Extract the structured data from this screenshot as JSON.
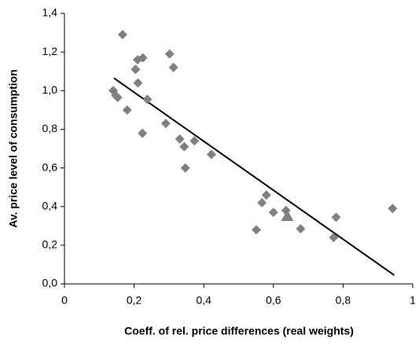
{
  "chart_data": {
    "type": "scatter",
    "x_label": "Coeff. of rel. price differences (real weights)",
    "y_label": "Av. price level of consumption",
    "xlim": [
      0,
      1
    ],
    "ylim": [
      0,
      1.4
    ],
    "xticks": [
      0,
      {
        "value": 0.2,
        "label": "0,2"
      },
      {
        "value": 0.4,
        "label": "0,4"
      },
      {
        "value": 0.6,
        "label": "0,6"
      },
      {
        "value": 0.8,
        "label": "0,8"
      },
      1
    ],
    "yticks": [
      {
        "value": 0,
        "label": "0,0"
      },
      {
        "value": 0.2,
        "label": "0,2"
      },
      {
        "value": 0.4,
        "label": "0,4"
      },
      {
        "value": 0.6,
        "label": "0,6"
      },
      {
        "value": 0.8,
        "label": "0,8"
      },
      {
        "value": 1.0,
        "label": "1,0"
      },
      {
        "value": 1.2,
        "label": "1,2"
      },
      {
        "value": 1.4,
        "label": "1,4"
      }
    ],
    "series": [
      {
        "color": "#808080",
        "marker": "diamond",
        "x": [
          0.167,
          0.302,
          0.313,
          0.21,
          0.225,
          0.204,
          0.211,
          0.238,
          0.14,
          0.147,
          0.153,
          0.18,
          0.224,
          0.291,
          0.331,
          0.344,
          0.373,
          0.422,
          0.347,
          0.58,
          0.567,
          0.6,
          0.551,
          0.636,
          0.678,
          0.773,
          0.78,
          0.942
        ],
        "values": [
          1.29,
          1.19,
          1.12,
          1.16,
          1.17,
          1.11,
          1.04,
          0.955,
          1.0,
          0.975,
          0.965,
          0.9,
          0.78,
          0.83,
          0.75,
          0.71,
          0.74,
          0.67,
          0.6,
          0.46,
          0.42,
          0.37,
          0.28,
          0.38,
          0.285,
          0.24,
          0.345,
          0.39
        ]
      },
      {
        "color": "#808080",
        "marker": "triangle",
        "x": [
          0.64
        ],
        "values": [
          0.35
        ]
      }
    ],
    "trendline": {
      "color": "#000000",
      "x": [
        0.142,
        0.947
      ],
      "values": [
        1.065,
        0.045
      ]
    }
  }
}
